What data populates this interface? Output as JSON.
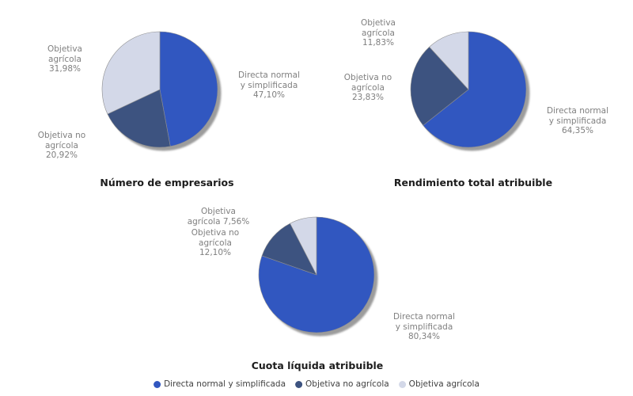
{
  "palette": {
    "directa": "#3157c0",
    "objetiva_no_agricola": "#3d5380",
    "objetiva_agricola": "#d3d8e8",
    "shadow": "#9c9c9c",
    "slice_stroke": "#8f8f8f",
    "label_text": "#7f7f7f",
    "title_text": "#1c1c1c"
  },
  "legend": {
    "items": [
      {
        "label": "Directa normal y simplificada",
        "color": "#3157c0"
      },
      {
        "label": "Objetiva no agrícola",
        "color": "#3d5380"
      },
      {
        "label": "Objetiva agrícola",
        "color": "#d3d8e8"
      }
    ]
  },
  "chart_data": [
    {
      "type": "pie",
      "title": "Número de empresarios",
      "labels": [
        "Directa normal y simplificada",
        "Objetiva no agrícola",
        "Objetiva agrícola"
      ],
      "values": [
        47.1,
        20.92,
        31.98
      ],
      "value_labels": [
        "47,10%",
        "20,92%",
        "31,98%"
      ],
      "colors": [
        "#3157c0",
        "#3d5380",
        "#d3d8e8"
      ],
      "start_angle": "12 o'clock",
      "direction": "clockwise",
      "callouts": [
        [
          "Directa normal",
          "y simplificada",
          "47,10%"
        ],
        [
          "Objetiva no",
          "agrícola",
          "20,92%"
        ],
        [
          "Objetiva",
          "agrícola",
          "31,98%"
        ]
      ]
    },
    {
      "type": "pie",
      "title": "Rendimiento total atribuible",
      "labels": [
        "Directa normal y simplificada",
        "Objetiva no agrícola",
        "Objetiva agrícola"
      ],
      "values": [
        64.35,
        23.83,
        11.83
      ],
      "value_labels": [
        "64,35%",
        "23,83%",
        "11,83%"
      ],
      "colors": [
        "#3157c0",
        "#3d5380",
        "#d3d8e8"
      ],
      "start_angle": "12 o'clock",
      "direction": "clockwise",
      "callouts": [
        [
          "Directa normal",
          "y simplificada",
          "64,35%"
        ],
        [
          "Objetiva no",
          "agrícola",
          "23,83%"
        ],
        [
          "Objetiva",
          "agrícola",
          "11,83%"
        ]
      ]
    },
    {
      "type": "pie",
      "title": "Cuota líquida atribuible",
      "labels": [
        "Directa normal y simplificada",
        "Objetiva no agrícola",
        "Objetiva agrícola"
      ],
      "values": [
        80.34,
        12.1,
        7.56
      ],
      "value_labels": [
        "80,34%",
        "12,10%",
        "7,56%"
      ],
      "colors": [
        "#3157c0",
        "#3d5380",
        "#d3d8e8"
      ],
      "start_angle": "12 o'clock",
      "direction": "clockwise",
      "callouts": [
        [
          "Directa normal",
          "y simplificada",
          "80,34%"
        ],
        [
          "Objetiva no",
          "agrícola",
          "12,10%"
        ],
        [
          "Objetiva",
          "agrícola 7,56%"
        ]
      ]
    }
  ]
}
